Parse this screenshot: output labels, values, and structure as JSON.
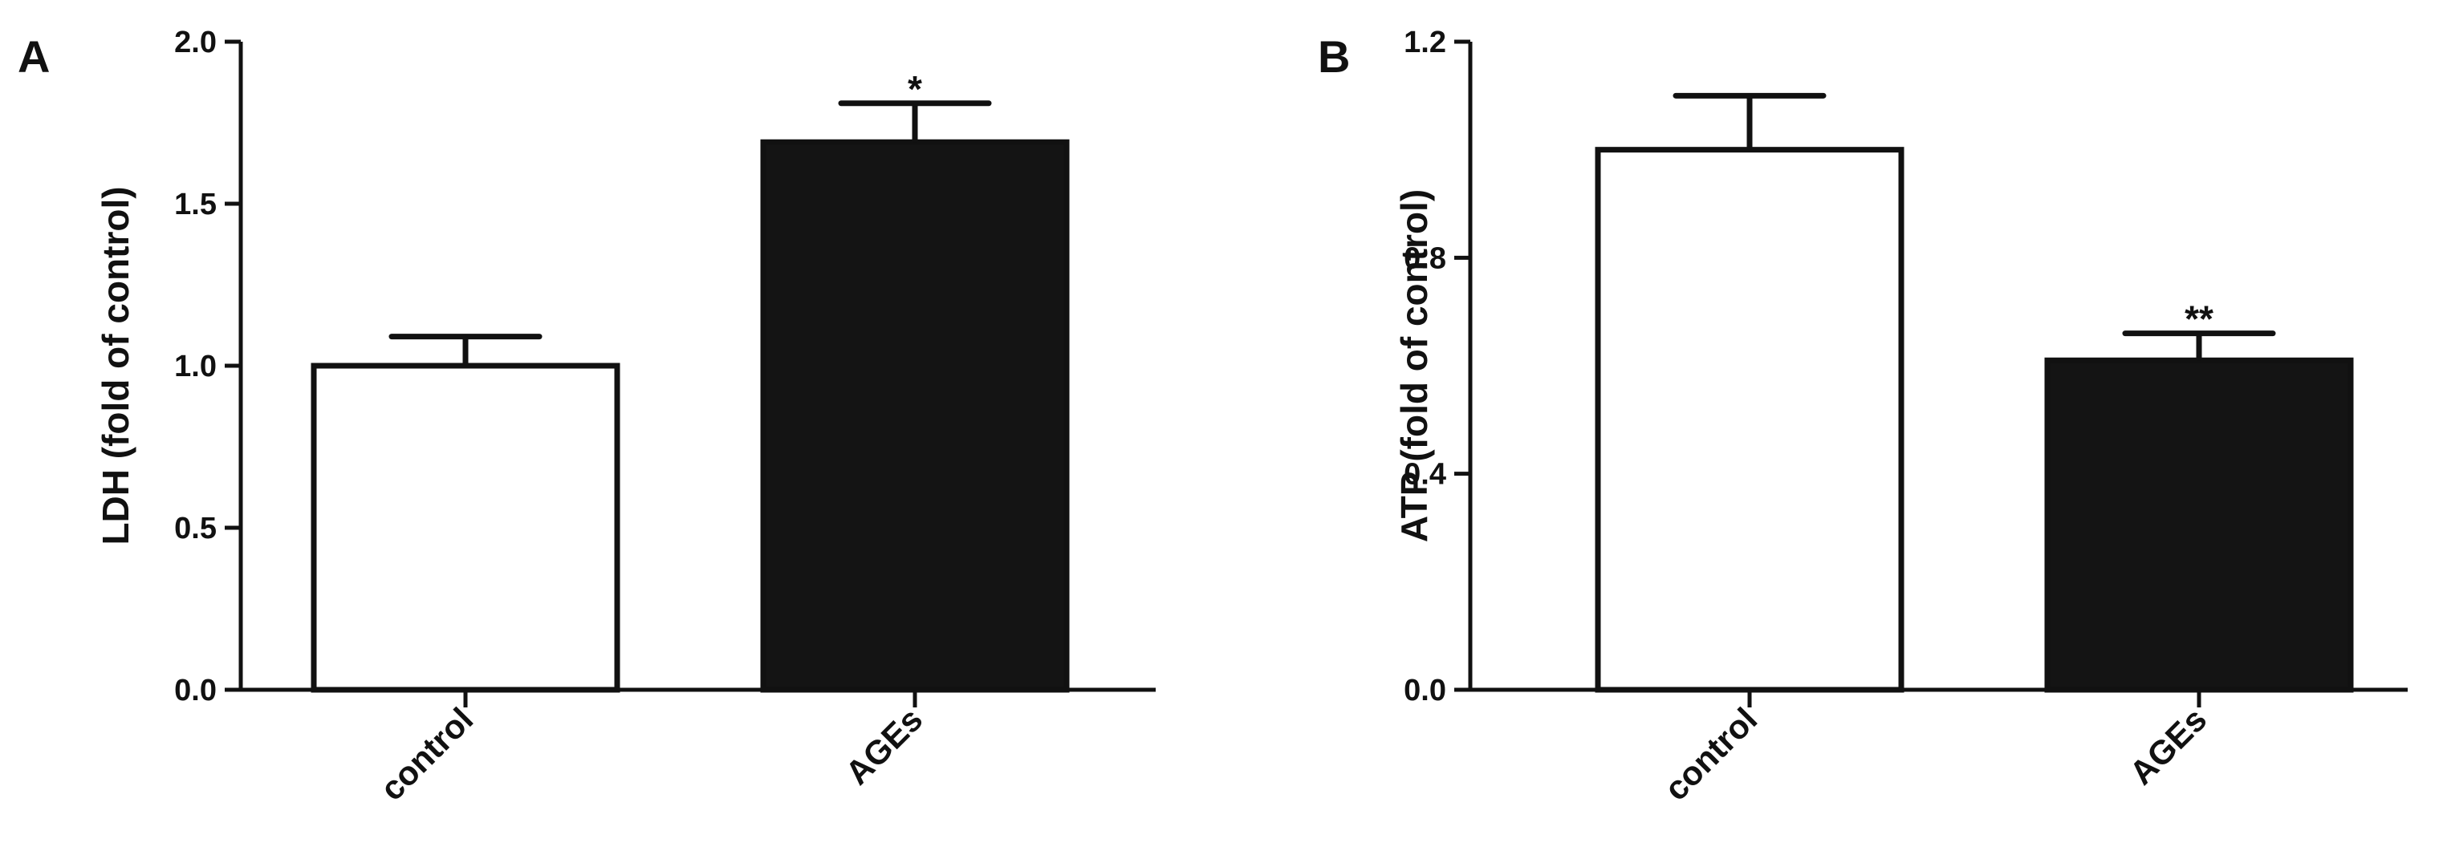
{
  "chart_data": [
    {
      "panel": "A",
      "type": "bar",
      "categories": [
        "control",
        "AGEs"
      ],
      "values": [
        1.0,
        1.69
      ],
      "errors": [
        0.09,
        0.12
      ],
      "significance": [
        "",
        "*"
      ],
      "bar_colors": [
        "#ffffff",
        "#141414"
      ],
      "ylabel": "LDH (fold of control)",
      "xlabel": "",
      "title": "",
      "ylim": [
        0,
        2.0
      ],
      "yticks": [
        0.0,
        0.5,
        1.0,
        1.5,
        2.0
      ],
      "ytick_labels": [
        "0.0",
        "0.5",
        "1.0",
        "1.5",
        "2.0"
      ],
      "grid": false
    },
    {
      "panel": "B",
      "type": "bar",
      "categories": [
        "control",
        "AGEs"
      ],
      "values": [
        1.0,
        0.61
      ],
      "errors": [
        0.1,
        0.05
      ],
      "significance": [
        "",
        "**"
      ],
      "bar_colors": [
        "#ffffff",
        "#141414"
      ],
      "ylabel": "ATP (fold of control)",
      "xlabel": "",
      "title": "",
      "ylim": [
        0,
        1.2
      ],
      "yticks": [
        0.0,
        0.4,
        0.8,
        1.2
      ],
      "ytick_labels": [
        "0.0",
        "0.4",
        "0.8",
        "1.2"
      ],
      "grid": false
    }
  ]
}
